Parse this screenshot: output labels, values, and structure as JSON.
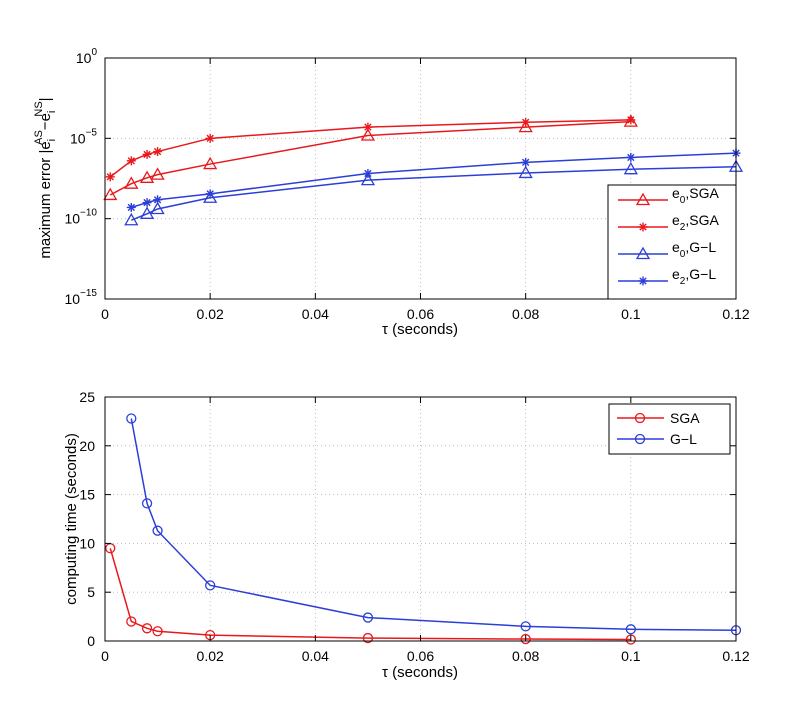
{
  "chart_data": [
    {
      "type": "line",
      "yscale": "log",
      "xlabel": "τ (seconds)",
      "ylabel": "maximum error |e_i^AS − e_i^NS|",
      "ylabel_text": "maximum error |e",
      "ylabel_sub": "i",
      "ylabel_sup_as": "AS",
      "ylabel_minus": "−e",
      "ylabel_sub2": "i",
      "ylabel_sup_ns": "NS",
      "ylabel_end": "|",
      "xlim": [
        0,
        0.12
      ],
      "ylim": [
        1e-15,
        1
      ],
      "xticks": [
        "0",
        "0.02",
        "0.04",
        "0.06",
        "0.08",
        "0.1",
        "0.12"
      ],
      "yticks": [
        {
          "base": "10",
          "exp": "0",
          "value": 1
        },
        {
          "base": "10",
          "exp": "−5",
          "value": 1e-05
        },
        {
          "base": "10",
          "exp": "−10",
          "value": 1e-10
        },
        {
          "base": "10",
          "exp": "−15",
          "value": 1e-15
        }
      ],
      "grid": true,
      "legend_position": "right",
      "series": [
        {
          "name": "e0,SGA",
          "label_main": "e",
          "label_sub": "0",
          "label_rest": ",SGA",
          "color": "#e8191c",
          "marker": "triangle",
          "x": [
            0.001,
            0.005,
            0.008,
            0.01,
            0.02,
            0.05,
            0.08,
            0.1
          ],
          "y": [
            3e-09,
            1.5e-08,
            3.5e-08,
            5.5e-08,
            2.5e-07,
            1.5e-05,
            5e-05,
            0.00011
          ]
        },
        {
          "name": "e2,SGA",
          "label_main": "e",
          "label_sub": "2",
          "label_rest": ",SGA",
          "color": "#e8191c",
          "marker": "star",
          "x": [
            0.001,
            0.005,
            0.008,
            0.01,
            0.02,
            0.05,
            0.08,
            0.1
          ],
          "y": [
            4e-08,
            4e-07,
            1e-06,
            1.5e-06,
            1e-05,
            5e-05,
            0.0001,
            0.00014
          ]
        },
        {
          "name": "e0,G-L",
          "label_main": "e",
          "label_sub": "0",
          "label_rest": ",G−L",
          "color": "#2b3fd8",
          "marker": "triangle",
          "x": [
            0.005,
            0.008,
            0.01,
            0.02,
            0.05,
            0.08,
            0.1,
            0.12
          ],
          "y": [
            8e-11,
            2e-10,
            4e-10,
            2e-09,
            2.5e-08,
            7e-08,
            1.2e-07,
            1.7e-07
          ]
        },
        {
          "name": "e2,G-L",
          "label_main": "e",
          "label_sub": "2",
          "label_rest": ",G−L",
          "color": "#2b3fd8",
          "marker": "star",
          "x": [
            0.005,
            0.008,
            0.01,
            0.02,
            0.05,
            0.08,
            0.1,
            0.12
          ],
          "y": [
            5e-10,
            1e-09,
            1.5e-09,
            3.5e-09,
            6.5e-08,
            3.2e-07,
            6.5e-07,
            1.2e-06
          ]
        }
      ]
    },
    {
      "type": "line",
      "yscale": "linear",
      "xlabel": "τ (seconds)",
      "ylabel": "computing time (seconds)",
      "xlim": [
        0,
        0.12
      ],
      "ylim": [
        0,
        25
      ],
      "xticks": [
        "0",
        "0.02",
        "0.04",
        "0.06",
        "0.08",
        "0.1",
        "0.12"
      ],
      "yticks": [
        "0",
        "5",
        "10",
        "15",
        "20",
        "25"
      ],
      "grid": true,
      "legend_position": "top-right",
      "series": [
        {
          "name": "SGA",
          "color": "#e8191c",
          "marker": "circle",
          "x": [
            0.001,
            0.005,
            0.008,
            0.01,
            0.02,
            0.05,
            0.08,
            0.1
          ],
          "y": [
            9.5,
            2.0,
            1.3,
            1.0,
            0.6,
            0.3,
            0.2,
            0.15
          ]
        },
        {
          "name": "G−L",
          "color": "#2b3fd8",
          "marker": "circle",
          "x": [
            0.005,
            0.008,
            0.01,
            0.02,
            0.05,
            0.08,
            0.1,
            0.12
          ],
          "y": [
            22.8,
            14.1,
            11.3,
            5.7,
            2.4,
            1.5,
            1.2,
            1.1
          ]
        }
      ]
    }
  ]
}
